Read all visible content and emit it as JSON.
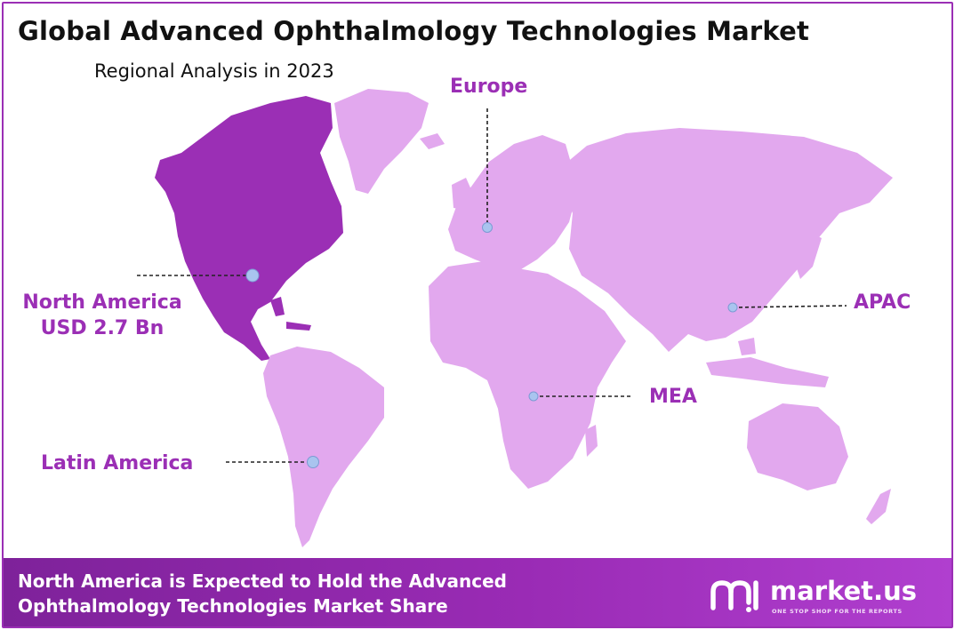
{
  "header": {
    "title": "Global Advanced Ophthalmology Technologies Market",
    "subtitle": "Regional Analysis in 2023"
  },
  "regions": [
    {
      "id": "europe",
      "label": "Europe",
      "value": "",
      "highlighted": false
    },
    {
      "id": "north-america",
      "label": "North America",
      "value": "USD 2.7 Bn",
      "highlighted": true
    },
    {
      "id": "apac",
      "label": "APAC",
      "value": "",
      "highlighted": false
    },
    {
      "id": "mea",
      "label": "MEA",
      "value": "",
      "highlighted": false
    },
    {
      "id": "latin-america",
      "label": "Latin America",
      "value": "",
      "highlighted": false
    }
  ],
  "footer": {
    "line1": "North America is Expected to Hold the Advanced",
    "line2": "Ophthalmology Technologies Market Share"
  },
  "brand": {
    "name": "market.us",
    "tagline": "ONE STOP SHOP FOR THE REPORTS",
    "logo_icon": "market-us-logo-icon"
  },
  "colors": {
    "accent": "#9b2fb5",
    "highlight_region": "#9b2fb5",
    "other_regions": "#e2a8ee",
    "marker": "#a9c4ef",
    "footer_bg": "#9a2bb5"
  }
}
